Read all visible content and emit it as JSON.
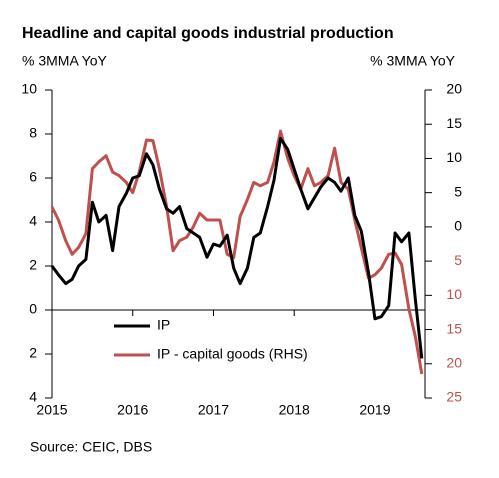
{
  "chart_data": {
    "type": "line",
    "title": "Headline and capital goods industrial production",
    "y_label": "% 3MMA YoY",
    "y2_label": "% 3MMA YoY",
    "source": "Source: CEIC, DBS",
    "x": [
      2015.0,
      2015.08,
      2015.17,
      2015.25,
      2015.33,
      2015.42,
      2015.5,
      2015.58,
      2015.67,
      2015.75,
      2015.83,
      2015.92,
      2016.0,
      2016.08,
      2016.17,
      2016.25,
      2016.33,
      2016.42,
      2016.5,
      2016.58,
      2016.67,
      2016.75,
      2016.83,
      2016.92,
      2017.0,
      2017.08,
      2017.17,
      2017.25,
      2017.33,
      2017.42,
      2017.5,
      2017.58,
      2017.67,
      2017.75,
      2017.83,
      2017.92,
      2018.0,
      2018.08,
      2018.17,
      2018.25,
      2018.33,
      2018.42,
      2018.5,
      2018.58,
      2018.67,
      2018.75,
      2018.83,
      2018.92,
      2019.0,
      2019.08,
      2019.17,
      2019.25,
      2019.33,
      2019.42,
      2019.5,
      2019.58
    ],
    "xlim": [
      2015,
      2019.62
    ],
    "xticks": [
      2015,
      2016,
      2017,
      2018,
      2019
    ],
    "ylim": [
      -4,
      10
    ],
    "yticks": [
      10,
      8,
      6,
      4,
      2,
      0,
      {
        "value": -2,
        "label": "2"
      },
      {
        "value": -4,
        "label": "4"
      }
    ],
    "y2lim": [
      -25,
      20
    ],
    "y2ticks": [
      20,
      15,
      10,
      5,
      0,
      {
        "value": -5,
        "label": "5"
      },
      {
        "value": -10,
        "label": "10"
      },
      {
        "value": -15,
        "label": "15"
      },
      {
        "value": -20,
        "label": "20"
      },
      {
        "value": -25,
        "label": "25"
      }
    ],
    "series": [
      {
        "name": "IP",
        "color": "#000000",
        "values": [
          2.0,
          1.6,
          1.2,
          1.4,
          2.0,
          2.3,
          4.9,
          4.0,
          4.3,
          2.7,
          4.7,
          5.3,
          6.0,
          6.1,
          7.1,
          6.6,
          5.5,
          4.6,
          4.4,
          4.7,
          3.7,
          3.5,
          3.3,
          2.4,
          3.0,
          2.9,
          3.4,
          1.9,
          1.2,
          1.9,
          3.3,
          3.5,
          4.7,
          5.9,
          7.8,
          7.3,
          6.4,
          5.5,
          4.6,
          5.1,
          5.6,
          6.0,
          5.8,
          5.4,
          6.0,
          4.3,
          3.6,
          1.7,
          -0.4,
          -0.3,
          0.2,
          3.5,
          3.1,
          3.5,
          0.5,
          -2.2
        ]
      },
      {
        "name": "IP - capital goods (RHS)",
        "color": "#c0504d",
        "axis": "y2",
        "values": [
          2.9,
          1.0,
          -2.0,
          -4.0,
          -3.0,
          -1.0,
          8.5,
          9.5,
          10.4,
          8.0,
          7.5,
          6.5,
          5.0,
          8.0,
          12.7,
          12.6,
          8.5,
          3.0,
          -3.5,
          -2.0,
          -1.5,
          0.0,
          2.0,
          1.0,
          1.0,
          1.0,
          -4.0,
          -4.5,
          1.5,
          4.0,
          6.5,
          6.0,
          6.5,
          9.5,
          14.0,
          10.0,
          7.5,
          5.5,
          8.5,
          6.0,
          6.5,
          7.5,
          11.5,
          6.5,
          5.5,
          1.0,
          -3.0,
          -7.5,
          -7.0,
          -6.0,
          -4.0,
          -3.8,
          -5.5,
          -12.0,
          -16.0,
          -21.5
        ]
      }
    ]
  }
}
